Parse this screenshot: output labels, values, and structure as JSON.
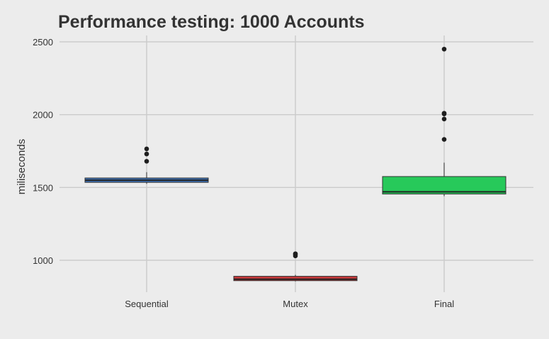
{
  "chart_data": {
    "type": "box",
    "title": "Performance testing: 1000 Accounts",
    "xlabel": "",
    "ylabel": "miliseconds",
    "categories": [
      "Sequential",
      "Mutex",
      "Final"
    ],
    "yticks": [
      1000,
      1500,
      2000,
      2500
    ],
    "ylim": [
      860,
      2545
    ],
    "grid": true,
    "legend": "none",
    "boxes": [
      {
        "category": "Sequential",
        "whisker_low": 1525,
        "q1": 1535,
        "median": 1550,
        "q3": 1565,
        "whisker_high": 1605,
        "outliers": [
          1680,
          1730,
          1765
        ],
        "color": "#3c6fb4"
      },
      {
        "category": "Mutex",
        "whisker_low": 855,
        "q1": 860,
        "median": 870,
        "q3": 890,
        "whisker_high": 900,
        "outliers": [
          1030,
          1040,
          1045
        ],
        "color": "#c8393b"
      },
      {
        "category": "Final",
        "whisker_low": 1440,
        "q1": 1455,
        "median": 1470,
        "q3": 1575,
        "whisker_high": 1670,
        "outliers": [
          1830,
          1970,
          2005,
          2010,
          2450
        ],
        "color": "#27c95a"
      }
    ]
  }
}
